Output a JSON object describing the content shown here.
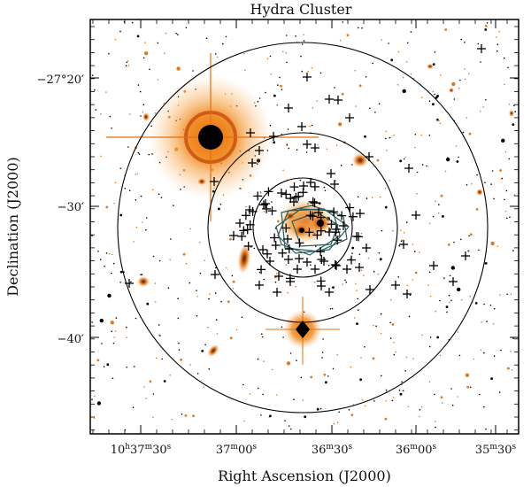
{
  "title": "Hydra Cluster",
  "x_axis": {
    "label": "Right Ascension (J2000)",
    "ticks": [
      {
        "h": "10",
        "m": "37",
        "s": "30",
        "show_hour": true
      },
      {
        "h": "",
        "m": "37",
        "s": "00",
        "show_hour": false
      },
      {
        "h": "",
        "m": "36",
        "s": "30",
        "show_hour": false
      },
      {
        "h": "",
        "m": "36",
        "s": "00",
        "show_hour": false
      },
      {
        "h": "",
        "m": "35",
        "s": "30",
        "show_hour": false
      }
    ]
  },
  "y_axis": {
    "label": "Declination (J2000)",
    "ticks": [
      "−27°20′",
      "−30′",
      "−40′"
    ]
  },
  "colors": {
    "frame": "#000000",
    "star_halo": "#f08a1c",
    "star_core": "#000000",
    "galaxy": "#e07010",
    "marker": "#000000",
    "field_outline": "#2a5a5a"
  },
  "circles": {
    "count": 3
  },
  "markers": {
    "count": 110
  }
}
